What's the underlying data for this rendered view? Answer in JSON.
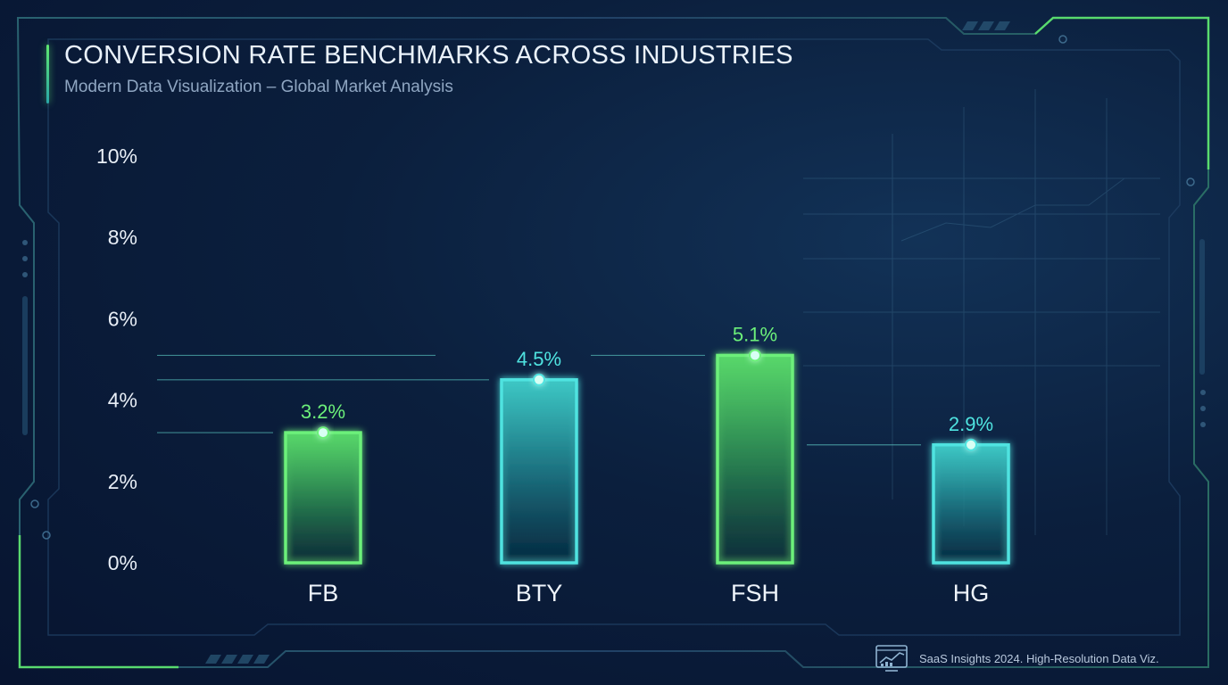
{
  "header": {
    "title": "CONVERSION RATE BENCHMARKS ACROSS INDUSTRIES",
    "subtitle": "Modern Data Visualization – Global Market Analysis"
  },
  "footer": {
    "text": "SaaS Insights 2024. High-Resolution Data Viz.",
    "icon": "chart-monitor-icon"
  },
  "colors": {
    "green": "#6cf07a",
    "cyan": "#4fe3e0",
    "axis": "#5ee86f",
    "frame": "#2b4f75"
  },
  "chart_data": {
    "type": "bar",
    "title": "CONVERSION RATE BENCHMARKS ACROSS INDUSTRIES",
    "subtitle": "Modern Data Visualization – Global Market Analysis",
    "categories": [
      "FB",
      "BTY",
      "FSH",
      "HG"
    ],
    "values": [
      3.2,
      4.5,
      5.1,
      2.9
    ],
    "value_labels": [
      "3.2%",
      "4.5%",
      "5.1%",
      "2.9%"
    ],
    "bar_colors": [
      "green",
      "cyan",
      "green",
      "cyan"
    ],
    "yticks": [
      "0%",
      "2%",
      "4%",
      "6%",
      "8%",
      "10%"
    ],
    "ylim": [
      0,
      10
    ],
    "xlabel": "",
    "ylabel": "",
    "grid": false,
    "legend": "none"
  }
}
